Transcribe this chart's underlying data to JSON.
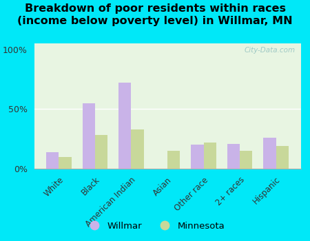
{
  "title": "Breakdown of poor residents within races\n(income below poverty level) in Willmar, MN",
  "categories": [
    "White",
    "Black",
    "American Indian",
    "Asian",
    "Other race",
    "2+ races",
    "Hispanic"
  ],
  "willmar": [
    14,
    55,
    72,
    0,
    20,
    21,
    26
  ],
  "minnesota": [
    10,
    28,
    33,
    15,
    22,
    15,
    19
  ],
  "willmar_color": "#c9b3e8",
  "minnesota_color": "#c8d89a",
  "background_outer": "#00e8f8",
  "background_inner": "#e8f5e2",
  "yticks": [
    0,
    50,
    100
  ],
  "ylim": [
    0,
    105
  ],
  "bar_width": 0.35,
  "title_fontsize": 11.5,
  "title_fontweight": "bold",
  "legend_labels": [
    "Willmar",
    "Minnesota"
  ],
  "watermark": "City-Data.com"
}
